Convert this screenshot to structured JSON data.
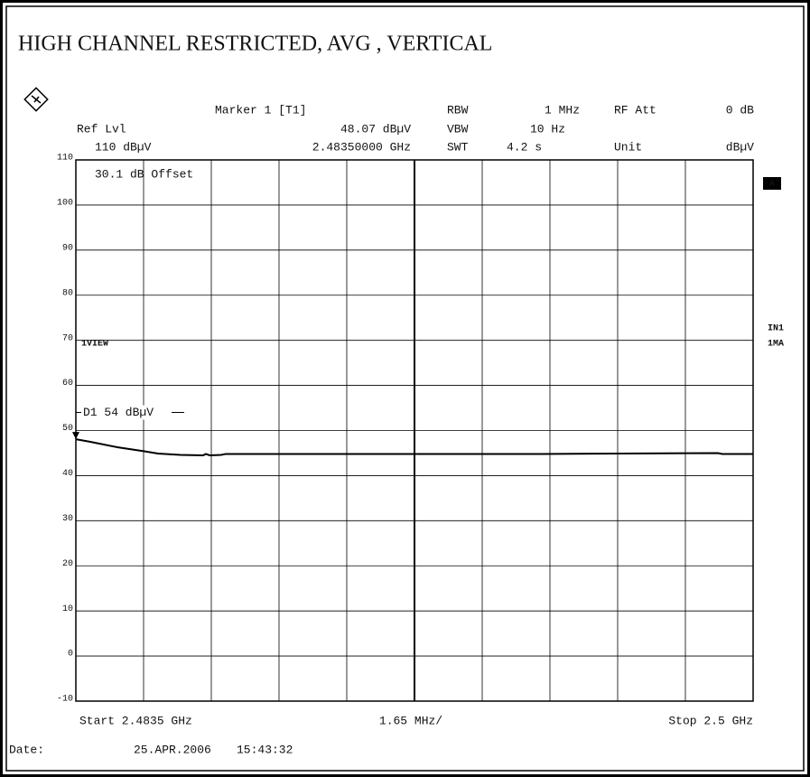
{
  "chart_data": {
    "type": "line",
    "title": "HIGH CHANNEL RESTRICTED, AVG , VERTICAL",
    "annotations": [
      "Marker 1 [T1]",
      "RBW",
      "1 MHz",
      "RF Att",
      "0 dB",
      "Ref Lvl",
      "48.07 dBµV",
      "VBW",
      "10 Hz",
      "110 dBµV",
      "2.48350000 GHz",
      "SWT",
      "4.2 s",
      "Unit",
      "dBµV",
      "30.1 dB Offset",
      "1VIEW",
      "A",
      "IN1",
      "1MA",
      "Start 2.4835 GHz",
      "1.65 MHz/",
      "Stop 2.5 GHz",
      "Date:",
      "25.APR.2006",
      "15:43:32"
    ],
    "display_line": {
      "label": "D1 54 dBµV",
      "value": 54
    },
    "x": [
      2.4835,
      2.48385,
      2.48451,
      2.48517,
      2.4855,
      2.48605,
      2.4866,
      2.48667,
      2.48676,
      2.48704,
      2.48715,
      2.49045,
      2.49485,
      2.49914,
      2.49925,
      2.5
    ],
    "series": [
      {
        "name": "1VIEW",
        "color": "#000000",
        "values": [
          48.07,
          47.5,
          46.3,
          45.4,
          44.9,
          44.6,
          44.5,
          44.8,
          44.5,
          44.6,
          44.8,
          44.8,
          44.8,
          45.0,
          44.8,
          44.8
        ]
      }
    ],
    "xlim": [
      2.4835,
      2.5
    ],
    "xticks": [
      2.4835,
      2.48515,
      2.4868,
      2.48845,
      2.4901,
      2.49175,
      2.4934,
      2.49505,
      2.4967,
      2.49835,
      2.5
    ],
    "ylim": [
      -10,
      110
    ],
    "yticks": [
      -10,
      0,
      10,
      20,
      30,
      40,
      50,
      60,
      70,
      80,
      90,
      100,
      110
    ],
    "grid": true
  }
}
